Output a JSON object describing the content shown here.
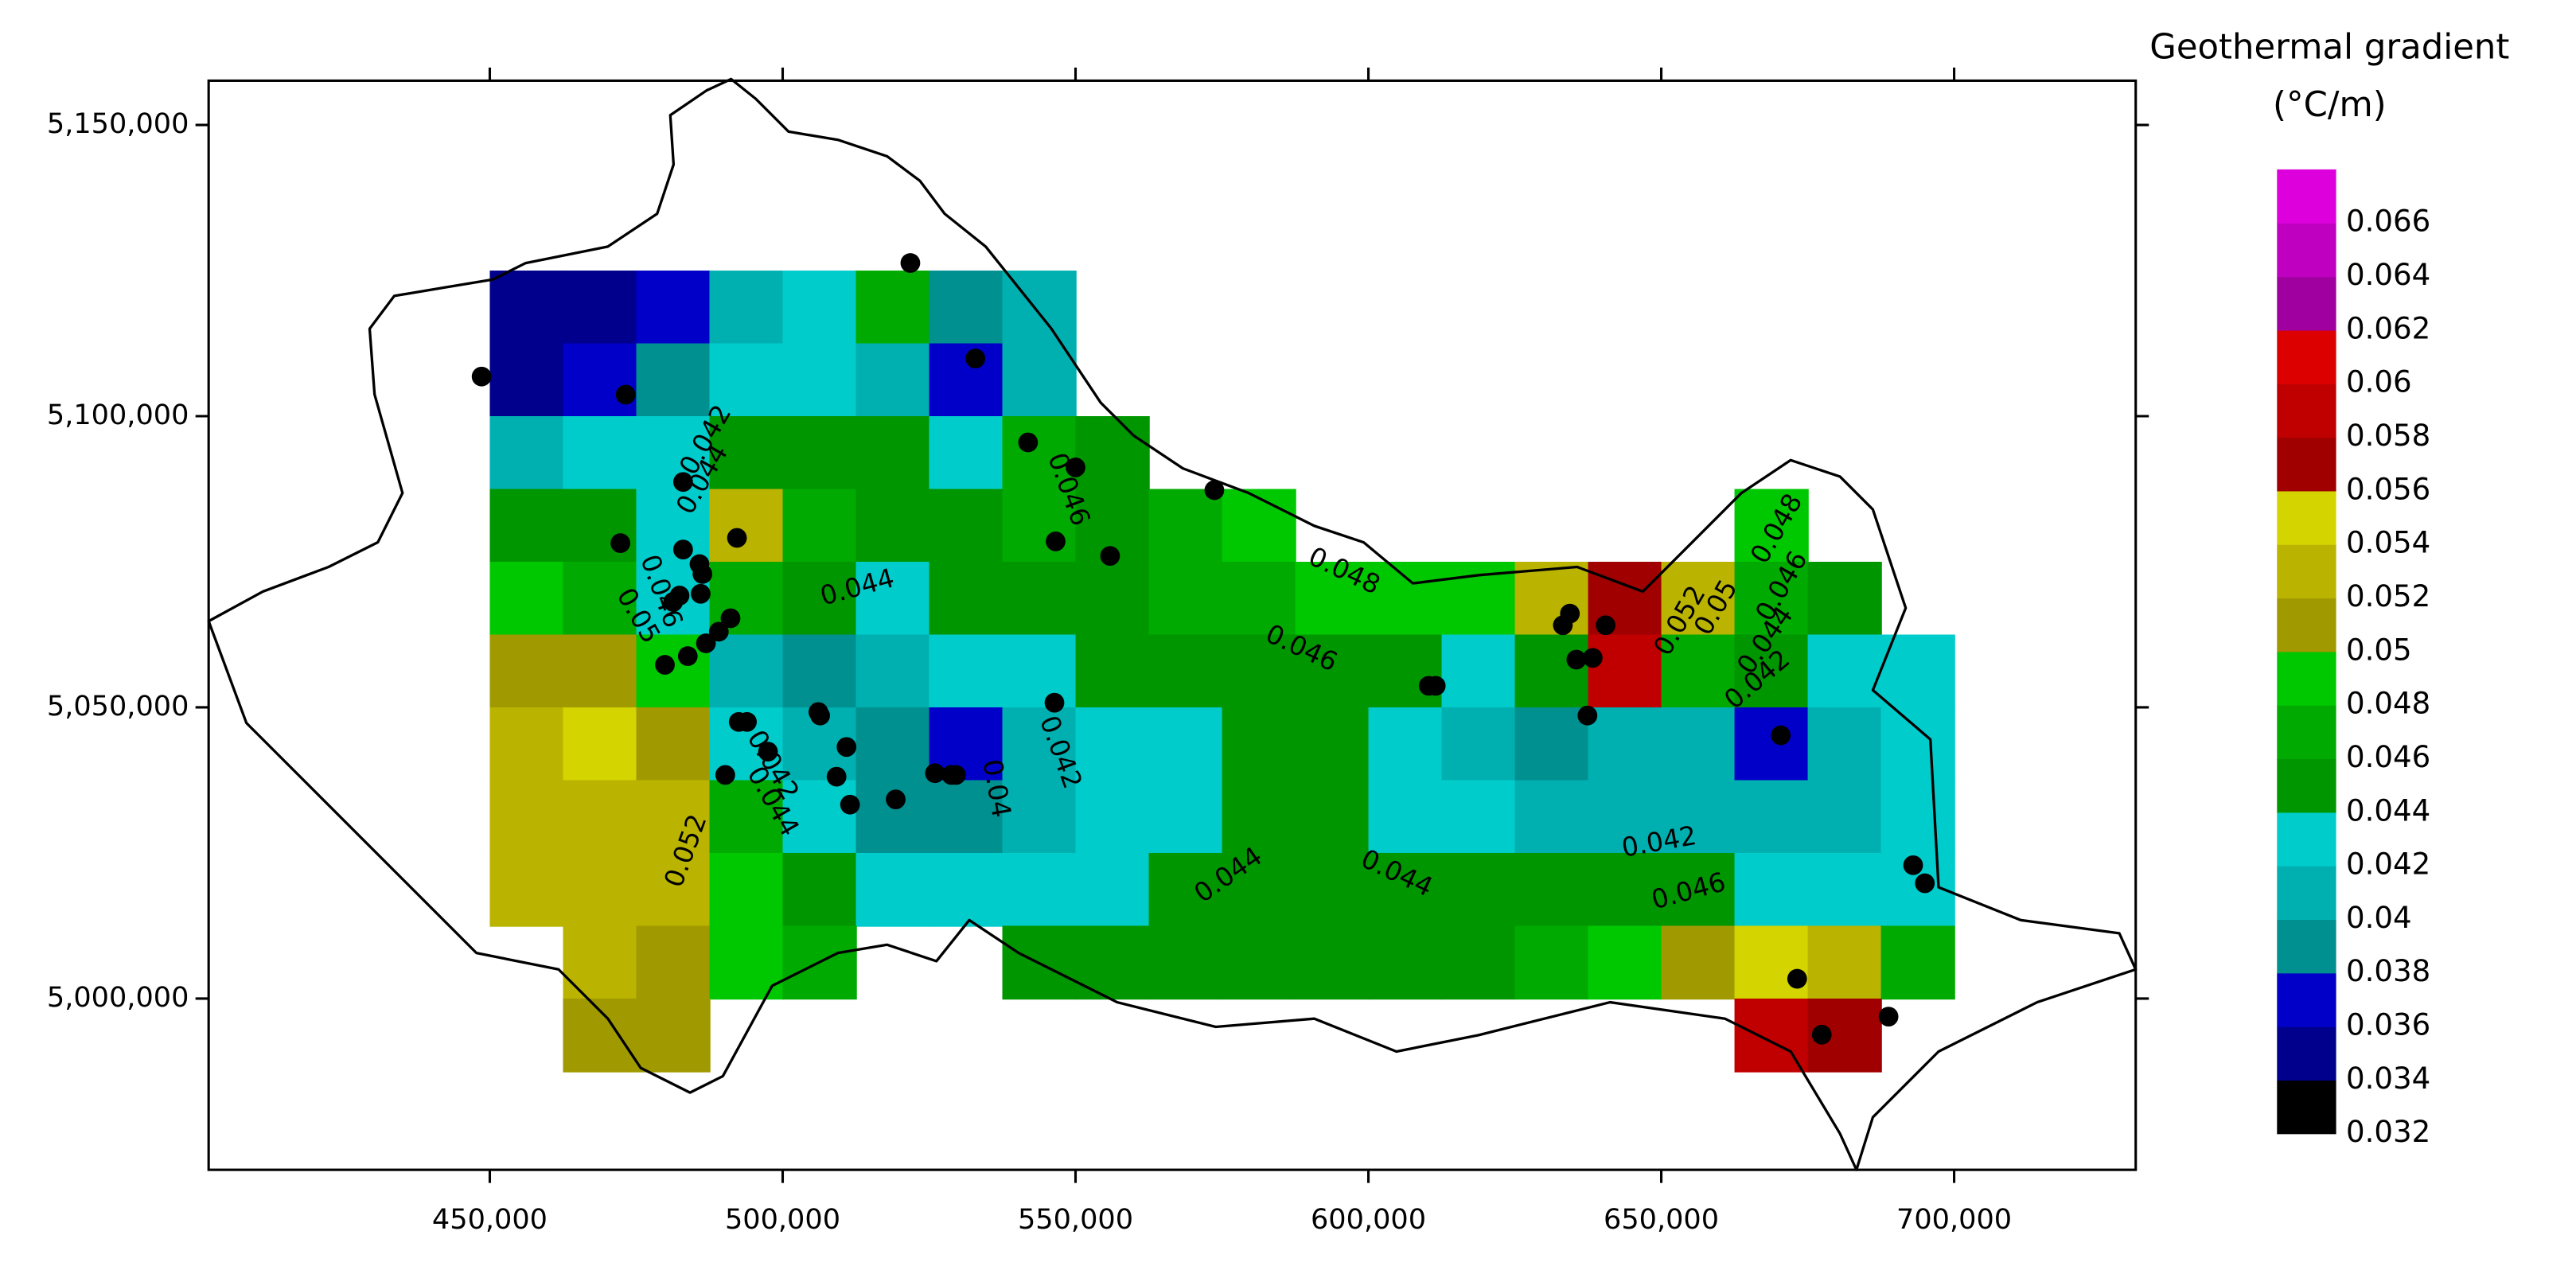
{
  "chart_data": {
    "type": "contour",
    "colorbar_title": [
      "Geothermal gradient",
      "(°C/m)"
    ],
    "xlim": [
      402000,
      731000
    ],
    "ylim": [
      4970600,
      5157600
    ],
    "xticks": [
      {
        "value": 450000,
        "label": "450,000"
      },
      {
        "value": 500000,
        "label": "500,000"
      },
      {
        "value": 550000,
        "label": "550,000"
      },
      {
        "value": 600000,
        "label": "600,000"
      },
      {
        "value": 650000,
        "label": "650,000"
      },
      {
        "value": 700000,
        "label": "700,000"
      }
    ],
    "yticks": [
      {
        "value": 5000000,
        "label": "5,000,000"
      },
      {
        "value": 5050000,
        "label": "5,050,000"
      },
      {
        "value": 5100000,
        "label": "5,100,000"
      },
      {
        "value": 5150000,
        "label": "5,150,000"
      }
    ],
    "clim": [
      0.032,
      0.068
    ],
    "colorbar_ticks": [
      0.032,
      0.034,
      0.036,
      0.038,
      0.04,
      0.042,
      0.044,
      0.046,
      0.048,
      0.05,
      0.052,
      0.054,
      0.056,
      0.058,
      0.06,
      0.062,
      0.064,
      0.066
    ],
    "colors": [
      "#000000",
      "#00008c",
      "#0000c8",
      "#00908f",
      "#00b0b0",
      "#00cccc",
      "#009600",
      "#00aa00",
      "#00c800",
      "#a09a00",
      "#bab400",
      "#d4d400",
      "#a00000",
      "#c00000",
      "#dd0000",
      "#a0009f",
      "#c000c0",
      "#dd00dd"
    ],
    "grid_x": [
      456250,
      468750,
      481250,
      493750,
      506250,
      518750,
      531250,
      543750,
      556250,
      568750,
      581250,
      593750,
      606250,
      618750,
      631250,
      643750,
      656250,
      668750,
      681250,
      693750
    ],
    "grid_y": [
      5118750,
      5106250,
      5093750,
      5081250,
      5068750,
      5056250,
      5043750,
      5031250,
      5018750,
      5006250,
      4993750
    ],
    "z": [
      [
        0.035,
        0.035,
        0.037,
        0.041,
        0.043,
        0.047,
        0.039,
        0.041,
        null,
        null,
        null,
        null,
        null,
        null,
        null,
        null,
        null,
        null,
        null,
        null
      ],
      [
        0.035,
        0.037,
        0.039,
        0.043,
        0.043,
        0.041,
        0.037,
        0.041,
        null,
        null,
        null,
        null,
        null,
        null,
        null,
        null,
        null,
        null,
        null,
        null
      ],
      [
        0.041,
        0.043,
        0.043,
        0.045,
        0.045,
        0.045,
        0.043,
        0.047,
        0.045,
        null,
        null,
        null,
        null,
        null,
        null,
        null,
        null,
        null,
        null,
        null
      ],
      [
        0.045,
        0.045,
        0.043,
        0.053,
        0.047,
        0.045,
        0.045,
        0.047,
        0.045,
        0.047,
        0.049,
        null,
        null,
        null,
        null,
        null,
        null,
        0.049,
        null,
        null
      ],
      [
        0.049,
        0.047,
        0.043,
        0.047,
        0.045,
        0.043,
        0.045,
        0.045,
        0.045,
        0.047,
        0.047,
        0.049,
        0.049,
        0.049,
        0.053,
        0.057,
        0.053,
        0.047,
        0.045,
        null
      ],
      [
        0.051,
        0.051,
        0.049,
        0.041,
        0.039,
        0.041,
        0.043,
        0.043,
        0.045,
        0.045,
        0.045,
        0.045,
        0.045,
        0.043,
        0.045,
        0.059,
        0.047,
        0.045,
        0.043,
        0.043
      ],
      [
        0.053,
        0.055,
        0.051,
        0.043,
        0.041,
        0.039,
        0.037,
        0.041,
        0.043,
        0.043,
        0.045,
        0.045,
        0.043,
        0.041,
        0.039,
        0.041,
        0.041,
        0.037,
        0.041,
        0.043
      ],
      [
        0.053,
        0.053,
        0.053,
        0.047,
        0.043,
        0.039,
        0.039,
        0.041,
        0.043,
        0.043,
        0.045,
        0.045,
        0.043,
        0.043,
        0.041,
        0.041,
        0.041,
        0.041,
        0.041,
        0.043
      ],
      [
        0.053,
        0.053,
        0.053,
        0.049,
        0.045,
        0.043,
        0.043,
        0.043,
        0.043,
        0.045,
        0.045,
        0.045,
        0.045,
        0.045,
        0.045,
        0.045,
        0.045,
        0.043,
        0.043,
        0.043
      ],
      [
        null,
        0.053,
        0.051,
        0.049,
        0.047,
        null,
        null,
        0.045,
        0.045,
        0.045,
        0.045,
        0.045,
        0.045,
        0.045,
        0.047,
        0.049,
        0.051,
        0.055,
        0.053,
        0.047
      ],
      [
        null,
        0.051,
        0.051,
        null,
        null,
        null,
        null,
        null,
        null,
        null,
        null,
        null,
        null,
        null,
        null,
        null,
        null,
        0.059,
        0.057,
        null
      ]
    ],
    "wells": {
      "x": [
        448600,
        473200,
        521800,
        532900,
        541900,
        550000,
        573700,
        546600,
        555900,
        472300,
        483000,
        492200,
        483000,
        485800,
        486300,
        482400,
        486000,
        481300,
        491100,
        489100,
        486900,
        483800,
        479900,
        492500,
        493900,
        497500,
        506100,
        506400,
        510900,
        509200,
        511500,
        519300,
        526000,
        528800,
        529600,
        546400,
        490200,
        610300,
        611500,
        633200,
        634400,
        640500,
        635500,
        638300,
        637400,
        670400,
        673200,
        677400,
        688800,
        693000,
        695000
      ],
      "y": [
        5106800,
        5103700,
        5126300,
        5109900,
        5095500,
        5091200,
        5087300,
        5078500,
        5076000,
        5078200,
        5088700,
        5079100,
        5077100,
        5074600,
        5072900,
        5069200,
        5069500,
        5068100,
        5065300,
        5063000,
        5061000,
        5058800,
        5057300,
        5047500,
        5047500,
        5042400,
        5049200,
        5048600,
        5043200,
        5038100,
        5033300,
        5034200,
        5038700,
        5038400,
        5038400,
        5050800,
        5038400,
        5053700,
        5053700,
        5064100,
        5066100,
        5064100,
        5058200,
        5058500,
        5048600,
        5045200,
        5003400,
        4993800,
        4996900,
        5022900,
        5019800
      ]
    },
    "contour_labels": [
      "0.042",
      "0.044",
      "0.044",
      "0.046",
      "0.048",
      "0.046",
      "0.042",
      "0.04",
      "0.044",
      "0.044",
      "0.042",
      "0.046",
      "0.052",
      "0.05",
      "0.046",
      "0.042",
      "0.044",
      "0.052",
      "0.05",
      "0.048",
      "0.046",
      "0.044",
      "0.042"
    ]
  }
}
